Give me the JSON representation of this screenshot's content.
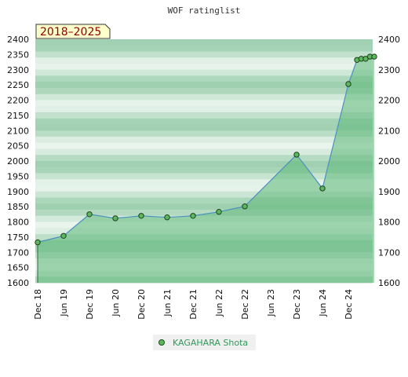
{
  "chart_data": {
    "type": "line",
    "title": "WOF ratinglist",
    "badge": "2018–2025",
    "legend": "KAGAHARA Shota",
    "ylim": [
      1600,
      2400
    ],
    "y_ticks": [
      2400,
      2350,
      2300,
      2250,
      2200,
      2150,
      2100,
      2050,
      2000,
      1950,
      1900,
      1850,
      1800,
      1750,
      1700,
      1650,
      1600
    ],
    "y_ticks_right": [
      2400,
      2300,
      2200,
      2100,
      2000,
      1900,
      1800,
      1700,
      1600
    ],
    "x_tick_labels": [
      "Dec 18",
      "Jun 19",
      "Dec 19",
      "Jun 20",
      "Dec 20",
      "Jun 21",
      "Dec 21",
      "Jun 22",
      "Dec 22",
      "Jun 23",
      "Dec 23",
      "Jun 24",
      "Dec 24"
    ],
    "series": [
      {
        "name": "KAGAHARA Shota",
        "points": [
          {
            "x": "2018-12",
            "y": 1733
          },
          {
            "x": "2019-06",
            "y": 1754
          },
          {
            "x": "2019-12",
            "y": 1825
          },
          {
            "x": "2020-06",
            "y": 1812
          },
          {
            "x": "2020-12",
            "y": 1820
          },
          {
            "x": "2021-06",
            "y": 1815
          },
          {
            "x": "2021-12",
            "y": 1820
          },
          {
            "x": "2022-06",
            "y": 1833
          },
          {
            "x": "2022-12",
            "y": 1851
          },
          {
            "x": "2023-12",
            "y": 2021
          },
          {
            "x": "2024-06",
            "y": 1910
          },
          {
            "x": "2024-12",
            "y": 2253
          },
          {
            "x": "2025-02",
            "y": 2332
          },
          {
            "x": "2025-03",
            "y": 2336
          },
          {
            "x": "2025-04",
            "y": 2336
          },
          {
            "x": "2025-05",
            "y": 2343
          },
          {
            "x": "2025-06",
            "y": 2343
          }
        ]
      }
    ],
    "colors": {
      "line": "#4a90c0",
      "fill": "#5fb87a",
      "marker": "#5cb85c",
      "band_light": "#e8f4ec",
      "band_dark": "#9fd0b0"
    }
  }
}
